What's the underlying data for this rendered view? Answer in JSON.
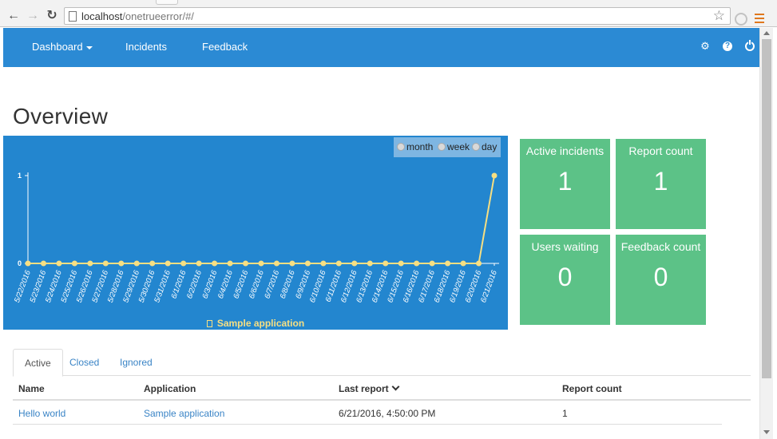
{
  "browser": {
    "url_host": "localhost",
    "url_path": "/onetrueerror/#/"
  },
  "navbar": {
    "dashboard_label": "Dashboard",
    "incidents_label": "Incidents",
    "feedback_label": "Feedback",
    "help_glyph": "?"
  },
  "page": {
    "title": "Overview"
  },
  "range_selector": {
    "options": [
      "month",
      "week",
      "day"
    ]
  },
  "chart_data": {
    "type": "line",
    "x": [
      "5/22/2016",
      "5/23/2016",
      "5/24/2016",
      "5/25/2016",
      "5/26/2016",
      "5/27/2016",
      "5/28/2016",
      "5/29/2016",
      "5/30/2016",
      "5/31/2016",
      "6/1/2016",
      "6/2/2016",
      "6/3/2016",
      "6/4/2016",
      "6/5/2016",
      "6/6/2016",
      "6/7/2016",
      "6/8/2016",
      "6/9/2016",
      "6/10/2016",
      "6/11/2016",
      "6/12/2016",
      "6/13/2016",
      "6/14/2016",
      "6/15/2016",
      "6/16/2016",
      "6/17/2016",
      "6/18/2016",
      "6/19/2016",
      "6/20/2016",
      "6/21/2016"
    ],
    "series": [
      {
        "name": "Sample application",
        "values": [
          0,
          0,
          0,
          0,
          0,
          0,
          0,
          0,
          0,
          0,
          0,
          0,
          0,
          0,
          0,
          0,
          0,
          0,
          0,
          0,
          0,
          0,
          0,
          0,
          0,
          0,
          0,
          0,
          0,
          0,
          1
        ]
      }
    ],
    "ylim": [
      0,
      1
    ],
    "yticks": [
      "0",
      "1"
    ],
    "grid": false,
    "legend": "bottom",
    "colors": {
      "background": "#2386cf",
      "line": "#f7df82",
      "axis": "#ffffff"
    }
  },
  "tiles": [
    {
      "label": "Active incidents",
      "value": "1"
    },
    {
      "label": "Report count",
      "value": "1"
    },
    {
      "label": "Users waiting",
      "value": "0"
    },
    {
      "label": "Feedback count",
      "value": "0"
    }
  ],
  "tabs": [
    "Active",
    "Closed",
    "Ignored"
  ],
  "table": {
    "headers": [
      "Name",
      "Application",
      "Last report",
      "Report count"
    ],
    "rows": [
      [
        "Hello world",
        "Sample application",
        "6/21/2016, 4:50:00 PM",
        "1"
      ]
    ]
  },
  "colors": {
    "navbar": "#2b8ad4",
    "tile": "#5cc287",
    "link": "#3a84c6"
  }
}
